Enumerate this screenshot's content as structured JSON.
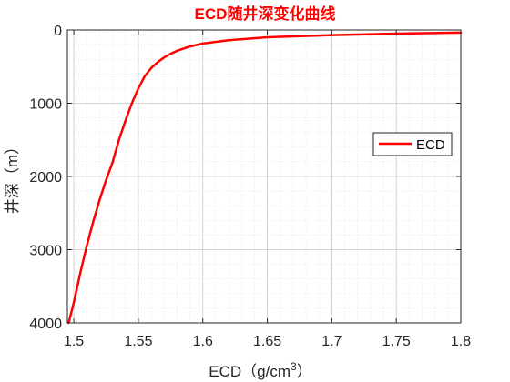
{
  "chart_data": {
    "type": "line",
    "title": "ECD随井深变化曲线",
    "title_color": "#ff0000",
    "xlabel_prefix": "ECD（g/cm",
    "xlabel_sup": "3",
    "xlabel_suffix": "）",
    "ylabel": "井深（m）",
    "xlim": [
      1.495,
      1.8
    ],
    "ylim": [
      0,
      4000
    ],
    "y_reversed": true,
    "x_ticks": [
      1.5,
      1.55,
      1.6,
      1.65,
      1.7,
      1.75,
      1.8
    ],
    "x_tick_labels": [
      "1.5",
      "1.55",
      "1.6",
      "1.65",
      "1.7",
      "1.75",
      "1.8"
    ],
    "y_ticks": [
      0,
      1000,
      2000,
      3000,
      4000
    ],
    "y_tick_labels": [
      "0",
      "1000",
      "2000",
      "3000",
      "4000"
    ],
    "grid": true,
    "minor_grid": true,
    "legend_position": "right",
    "series": [
      {
        "name": "ECD",
        "color": "#ff0000",
        "x": [
          1.496,
          1.5,
          1.505,
          1.51,
          1.515,
          1.52,
          1.525,
          1.53,
          1.535,
          1.54,
          1.545,
          1.55,
          1.555,
          1.56,
          1.565,
          1.57,
          1.575,
          1.58,
          1.59,
          1.6,
          1.62,
          1.65,
          1.7,
          1.75,
          1.8
        ],
        "y": [
          4000,
          3720,
          3320,
          2950,
          2620,
          2320,
          2050,
          1810,
          1500,
          1240,
          1000,
          800,
          630,
          520,
          440,
          375,
          325,
          285,
          225,
          185,
          140,
          100,
          70,
          50,
          35
        ]
      }
    ]
  }
}
